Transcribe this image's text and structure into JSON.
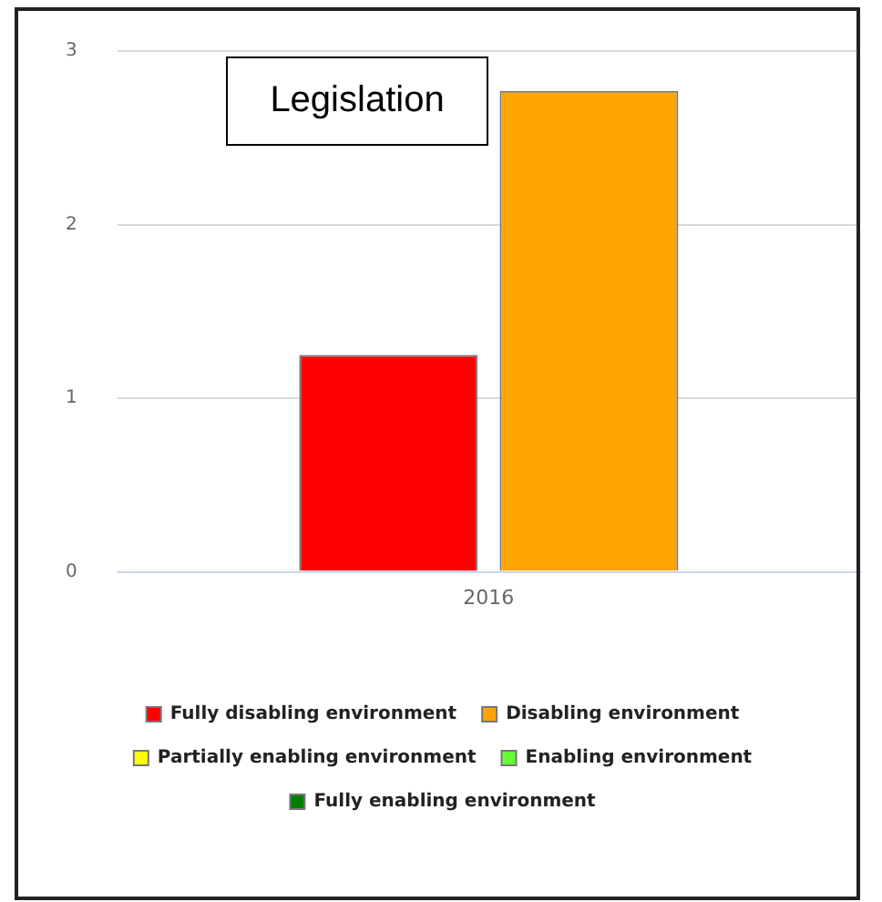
{
  "chart_data": {
    "type": "bar",
    "title": "Legislation",
    "categories": [
      "2016"
    ],
    "series": [
      {
        "name": "Fully disabling environment",
        "color": "#ff0000",
        "values": [
          1.25
        ]
      },
      {
        "name": "Disabling environment",
        "color": "#ffa500",
        "values": [
          2.77
        ]
      },
      {
        "name": "Partially enabling environment",
        "color": "#ffff00",
        "values": [
          null
        ]
      },
      {
        "name": "Enabling environment",
        "color": "#66ff33",
        "values": [
          null
        ]
      },
      {
        "name": "Fully enabling environment",
        "color": "#008000",
        "values": [
          null
        ]
      }
    ],
    "ylim": [
      0,
      3
    ],
    "yticks": [
      0,
      1,
      2,
      3
    ],
    "grid": "y",
    "legend": "bottom"
  }
}
